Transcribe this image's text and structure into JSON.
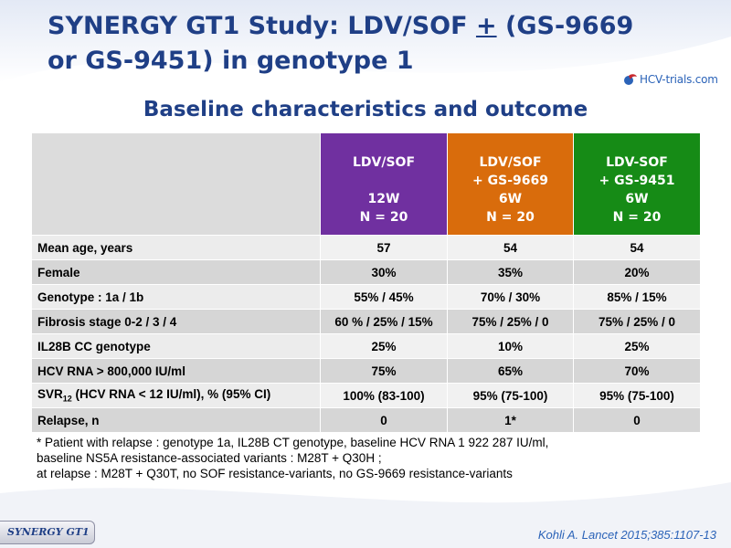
{
  "slide": {
    "title_part1": "SYNERGY GT1 Study: LDV/SOF ",
    "title_pm": "+",
    "title_part2": " (GS-9669 or GS-9451) in genotype 1",
    "subtitle": "Baseline characteristics and outcome",
    "logo_text": "HCV-trials.com",
    "badge": "SYNERGY GT1",
    "reference": "Kohli A. Lancet 2015;385:1107-13",
    "colors": {
      "title": "#1f3f86",
      "arm1": "#7030a0",
      "arm2": "#d96c0c",
      "arm3": "#168b16"
    }
  },
  "table": {
    "arms": [
      {
        "line1": "LDV/SOF",
        "line2": "",
        "line3": "12W",
        "line4": "N = 20"
      },
      {
        "line1": "LDV/SOF",
        "line2": "+ GS-9669",
        "line3": "6W",
        "line4": "N = 20"
      },
      {
        "line1": "LDV-SOF",
        "line2": "+ GS-9451",
        "line3": "6W",
        "line4": "N = 20"
      }
    ],
    "rows": [
      {
        "label": "Mean age, years",
        "values": [
          "57",
          "54",
          "54"
        ]
      },
      {
        "label": "Female",
        "values": [
          "30%",
          "35%",
          "20%"
        ]
      },
      {
        "label": "Genotype : 1a / 1b",
        "values": [
          "55% / 45%",
          "70% / 30%",
          "85% / 15%"
        ]
      },
      {
        "label": "Fibrosis stage 0-2 / 3 / 4",
        "values": [
          "60 % / 25% / 15%",
          "75% / 25% / 0",
          "75% / 25% / 0"
        ]
      },
      {
        "label": "IL28B CC genotype",
        "values": [
          "25%",
          "10%",
          "25%"
        ]
      },
      {
        "label": "HCV RNA > 800,000 IU/ml",
        "values": [
          "75%",
          "65%",
          "70%"
        ]
      },
      {
        "label_pre": "SVR",
        "label_sub": "12",
        "label_post": " (HCV RNA < 12 IU/ml), % (95% CI)",
        "values": [
          "100% (83-100)",
          "95% (75-100)",
          "95% (75-100)"
        ]
      },
      {
        "label": "Relapse, n",
        "values": [
          "0",
          "1*",
          "0"
        ]
      }
    ]
  },
  "footnote": {
    "line1": "* Patient with relapse : genotype 1a, IL28B CT genotype, baseline HCV RNA 1 922 287 IU/ml,",
    "line2": "baseline NS5A resistance-associated variants : M28T + Q30H ;",
    "line3": "at relapse : M28T + Q30T, no SOF resistance-variants, no GS-9669 resistance-variants"
  }
}
